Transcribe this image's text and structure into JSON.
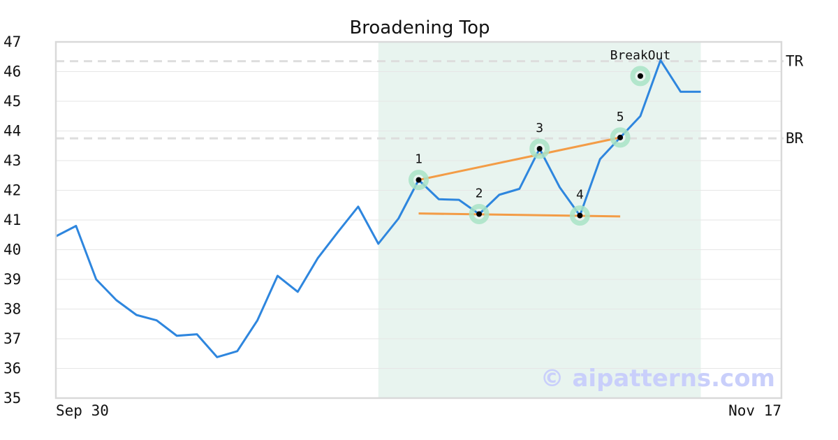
{
  "chart_data": {
    "type": "line",
    "title": "Broadening Top",
    "ylim": [
      35,
      47
    ],
    "yticks": [
      35,
      36,
      37,
      38,
      39,
      40,
      41,
      42,
      43,
      44,
      45,
      46,
      47
    ],
    "xlim": [
      0,
      36
    ],
    "xtick_labels": [
      {
        "x": 0,
        "label": "Sep 30"
      },
      {
        "x": 36,
        "label": "Nov 17"
      }
    ],
    "grid": true,
    "series": [
      {
        "color": "#2e86de",
        "x": [
          0,
          1,
          2,
          3,
          4,
          5,
          6,
          7,
          8,
          9,
          10,
          11,
          12,
          13,
          14,
          15,
          16,
          17,
          18,
          19,
          20,
          21,
          22,
          23,
          24,
          25,
          26,
          27,
          28,
          29,
          30,
          31,
          32
        ],
        "y": [
          40.45,
          40.8,
          39.0,
          38.3,
          37.8,
          37.62,
          37.1,
          37.15,
          36.38,
          36.58,
          37.62,
          39.12,
          38.58,
          39.72,
          40.6,
          41.45,
          40.2,
          41.05,
          42.35,
          41.7,
          41.68,
          41.2,
          41.85,
          42.05,
          43.4,
          42.1,
          41.15,
          43.05,
          43.78,
          44.5,
          46.38,
          45.32,
          45.32
        ]
      }
    ],
    "reference_lines": [
      {
        "label": "TR",
        "y": 46.35,
        "color": "#dddddd"
      },
      {
        "label": "BR",
        "y": 43.75,
        "color": "#dddddd"
      }
    ],
    "trend_lines": [
      {
        "from": [
          18,
          42.35
        ],
        "to": [
          28,
          43.78
        ],
        "color": "#f39c46"
      },
      {
        "from": [
          18,
          41.22
        ],
        "to": [
          28,
          41.12
        ],
        "color": "#f39c46"
      }
    ],
    "highlight_region": {
      "x": [
        16,
        32
      ],
      "color": "#e8f4ef"
    },
    "points": [
      {
        "label": "1",
        "x": 18,
        "y": 42.35
      },
      {
        "label": "2",
        "x": 21,
        "y": 41.2
      },
      {
        "label": "3",
        "x": 24,
        "y": 43.4
      },
      {
        "label": "4",
        "x": 26,
        "y": 41.15
      },
      {
        "label": "5",
        "x": 28,
        "y": 43.78
      },
      {
        "label": "BreakOut",
        "x": 29,
        "y": 45.85
      }
    ],
    "watermark": "© aipatterns.com"
  }
}
